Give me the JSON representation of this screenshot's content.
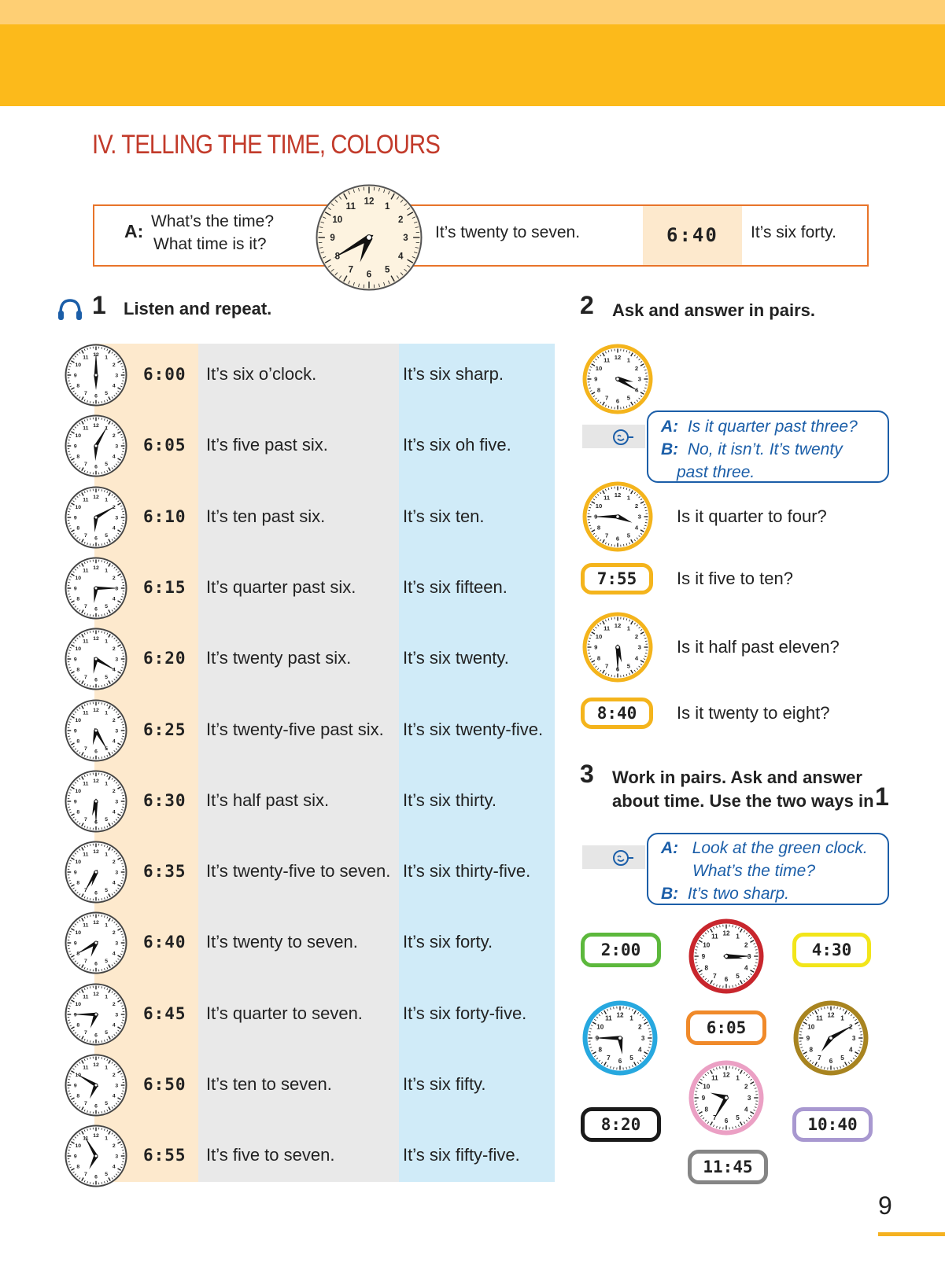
{
  "page_title": "IV. TELLING THE TIME, COLOURS",
  "intro": {
    "speaker": "A:",
    "question1": "What’s the time?",
    "question2": "What time is it?",
    "answer1": "It’s twenty to seven.",
    "digital": "6:40",
    "answer2": "It’s six forty.",
    "clock": {
      "hour": 6,
      "minute": 40
    }
  },
  "ex1": {
    "number": "1",
    "title": "Listen and repeat.",
    "icon": "headphones-icon",
    "rows": [
      {
        "digital": "6:00",
        "text1": "It’s six o’clock.",
        "text2": "It’s six sharp.",
        "hour": 6,
        "minute": 0
      },
      {
        "digital": "6:05",
        "text1": "It’s five past six.",
        "text2": "It’s six oh five.",
        "hour": 6,
        "minute": 5
      },
      {
        "digital": "6:10",
        "text1": "It’s ten past six.",
        "text2": "It’s six ten.",
        "hour": 6,
        "minute": 10
      },
      {
        "digital": "6:15",
        "text1": "It’s quarter past six.",
        "text2": "It’s six fifteen.",
        "hour": 6,
        "minute": 15
      },
      {
        "digital": "6:20",
        "text1": "It’s twenty past six.",
        "text2": "It’s six twenty.",
        "hour": 6,
        "minute": 20
      },
      {
        "digital": "6:25",
        "text1": "It’s twenty-five past six.",
        "text2": "It’s six twenty-five.",
        "hour": 6,
        "minute": 25
      },
      {
        "digital": "6:30",
        "text1": "It’s half past six.",
        "text2": "It’s six thirty.",
        "hour": 6,
        "minute": 30
      },
      {
        "digital": "6:35",
        "text1": "It’s twenty-five to seven.",
        "text2": "It’s six thirty-five.",
        "hour": 6,
        "minute": 35
      },
      {
        "digital": "6:40",
        "text1": "It’s twenty to seven.",
        "text2": "It’s six forty.",
        "hour": 6,
        "minute": 40
      },
      {
        "digital": "6:45",
        "text1": "It’s quarter to seven.",
        "text2": "It’s six forty-five.",
        "hour": 6,
        "minute": 45
      },
      {
        "digital": "6:50",
        "text1": "It’s ten to seven.",
        "text2": "It’s six fifty.",
        "hour": 6,
        "minute": 50
      },
      {
        "digital": "6:55",
        "text1": "It’s five to seven.",
        "text2": "It’s six fifty-five.",
        "hour": 6,
        "minute": 55
      }
    ]
  },
  "ex2": {
    "number": "2",
    "title": "Ask and answer in pairs.",
    "clock1": {
      "hour": 3,
      "minute": 20
    },
    "dialogue": {
      "a_label": "A:",
      "a_text": "Is it quarter past three?",
      "b_label": "B:",
      "b_text1": "No, it isn’t. It’s twenty",
      "b_text2": "past three."
    },
    "items": [
      {
        "type": "analog",
        "hour": 3,
        "minute": 45,
        "question": "Is it quarter to four?"
      },
      {
        "type": "digital",
        "digital": "7:55",
        "question": "Is it five to ten?"
      },
      {
        "type": "analog",
        "hour": 5,
        "minute": 30,
        "question": "Is it half past eleven?"
      },
      {
        "type": "digital",
        "digital": "8:40",
        "question": "Is it twenty to eight?"
      }
    ],
    "accent_color": "#f4b41c"
  },
  "ex3": {
    "number": "3",
    "title1": "Work in pairs. Ask and answer",
    "title2": "about time. Use the two ways in",
    "ref": "1",
    "dialogue": {
      "a_label": "A:",
      "a_text1": "Look at the green clock.",
      "a_text2": "What’s the time?",
      "b_label": "B:",
      "b_text": "It’s two sharp."
    },
    "clocks": [
      {
        "name": "green",
        "type": "digital",
        "digital": "2:00",
        "color": "#5cb83c"
      },
      {
        "name": "red",
        "type": "analog",
        "hour": 3,
        "minute": 15,
        "color": "#c8262d"
      },
      {
        "name": "yellow",
        "type": "digital",
        "digital": "4:30",
        "color": "#f2e51a"
      },
      {
        "name": "blue",
        "type": "analog",
        "hour": 5,
        "minute": 45,
        "color": "#27a8df"
      },
      {
        "name": "orange",
        "type": "digital",
        "digital": "6:05",
        "color": "#f08a2a"
      },
      {
        "name": "brown",
        "type": "analog",
        "hour": 7,
        "minute": 10,
        "color": "#a88420"
      },
      {
        "name": "black",
        "type": "digital",
        "digital": "8:20",
        "color": "#1a1a1a"
      },
      {
        "name": "pink",
        "type": "analog",
        "hour": 9,
        "minute": 35,
        "color": "#eba0c4"
      },
      {
        "name": "purple",
        "type": "digital",
        "digital": "10:40",
        "color": "#a898d0"
      },
      {
        "name": "grey",
        "type": "digital",
        "digital": "11:45",
        "color": "#858585"
      }
    ]
  },
  "page_number": "9"
}
